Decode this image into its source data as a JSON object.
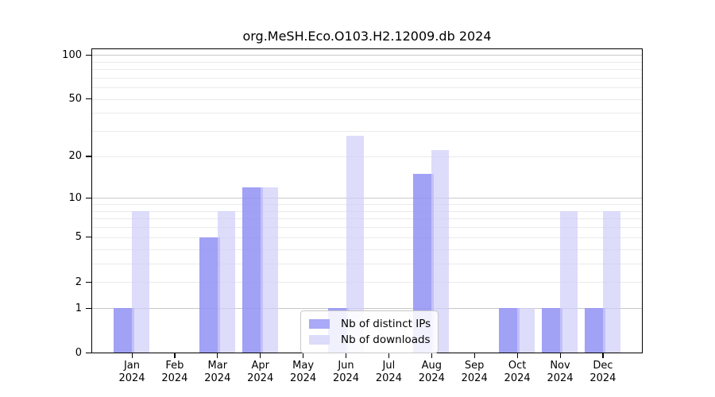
{
  "title": "org.MeSH.Eco.O103.H2.12009.db 2024",
  "chart_data": {
    "type": "bar",
    "title": "org.MeSH.Eco.O103.H2.12009.db 2024",
    "scale": "log1p",
    "categories": [
      "Jan",
      "Feb",
      "Mar",
      "Apr",
      "May",
      "Jun",
      "Jul",
      "Aug",
      "Sep",
      "Oct",
      "Nov",
      "Dec"
    ],
    "year_label": "2024",
    "series": [
      {
        "name": "Nb of distinct IPs",
        "color_rgba": "rgba(145,144,245,0.85)",
        "color_hex": "#a9a9f7",
        "values": [
          1,
          0,
          5,
          12,
          0,
          1,
          0,
          15,
          0,
          1,
          1,
          1
        ]
      },
      {
        "name": "Nb of downloads",
        "color_rgba": "rgba(206,205,250,0.70)",
        "color_hex": "#dcdbfa",
        "values": [
          8,
          0,
          8,
          12,
          0,
          28,
          0,
          22,
          0,
          1,
          8,
          8
        ]
      }
    ],
    "y_ticks": [
      0,
      1,
      2,
      5,
      10,
      20,
      50,
      100
    ],
    "y_minor_gridlines": [
      2,
      3,
      4,
      5,
      6,
      7,
      8,
      9,
      20,
      30,
      40,
      50,
      60,
      70,
      80,
      90
    ],
    "y_major_gridlines": [
      1,
      10,
      100
    ],
    "ylim": [
      0,
      100
    ],
    "xlabel": "",
    "ylabel": "",
    "grid": true,
    "legend_position": "bottom-center-inside",
    "colors": {
      "major_gridline": "#c8c8c8",
      "minor_gridline": "#ebebeb",
      "axis": "#000000",
      "background": "#ffffff"
    }
  }
}
